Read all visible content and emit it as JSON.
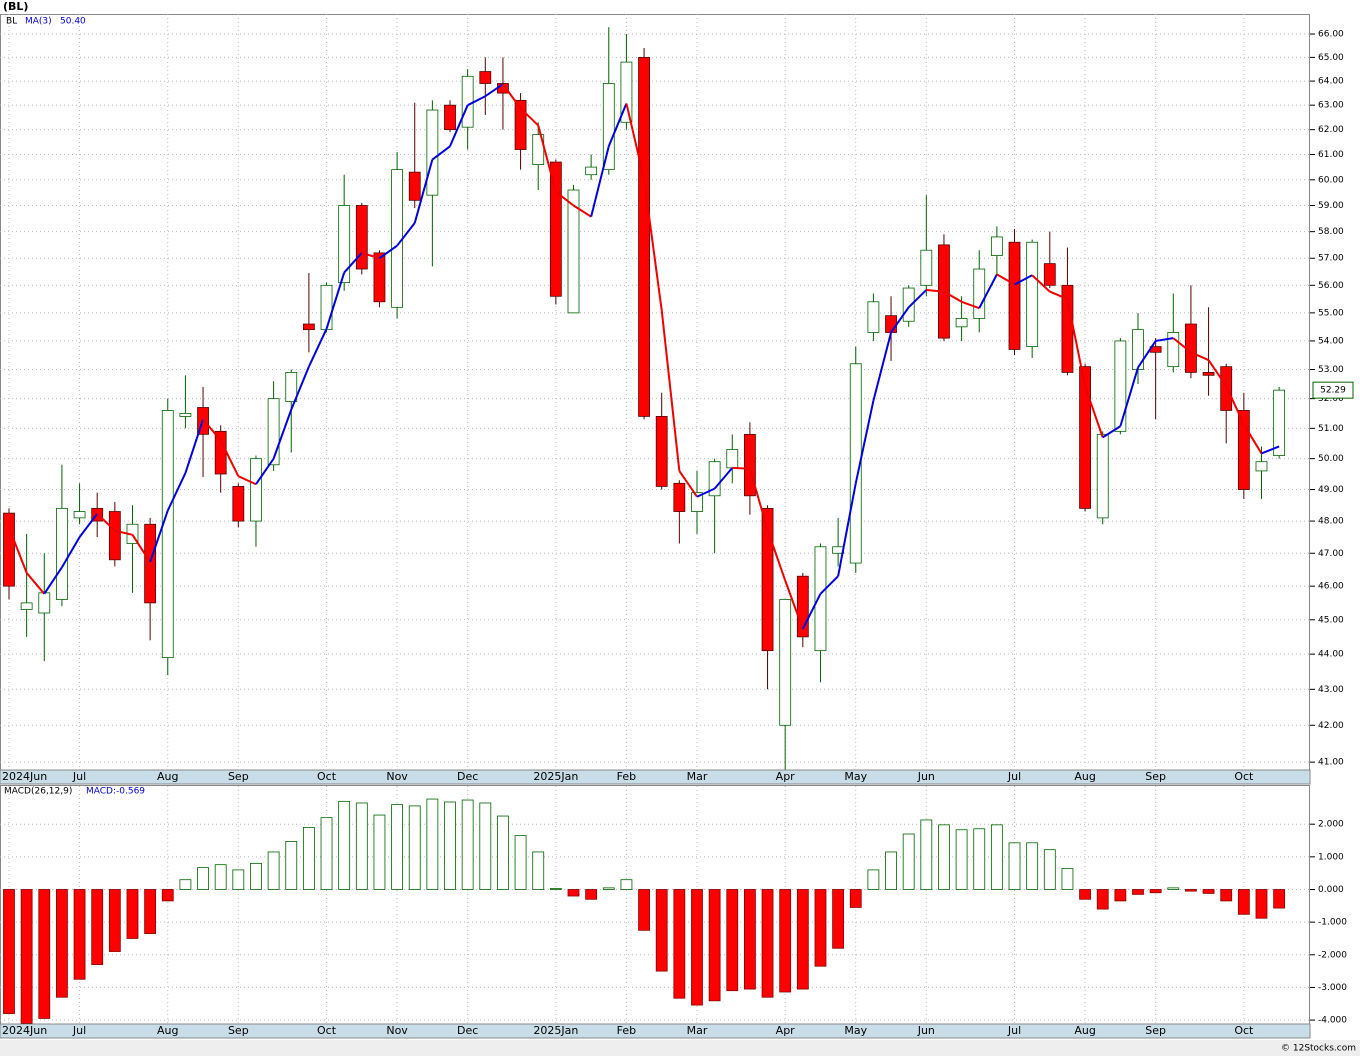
{
  "header": "(BL)",
  "footer": "© 12Stocks.com",
  "chart_data": [
    {
      "type": "candlestick",
      "symbol": "BL",
      "ma_name": "MA(3)",
      "ma_value_label": "50.40",
      "log_scale": true,
      "grid": true,
      "ylim": [
        40.79,
        66.87
      ],
      "yticks": [
        {
          "value": 41,
          "label": "41.00"
        },
        {
          "value": 42,
          "label": "42.00"
        },
        {
          "value": 43,
          "label": "43.00"
        },
        {
          "value": 44,
          "label": "44.00"
        },
        {
          "value": 45,
          "label": "45.00"
        },
        {
          "value": 46,
          "label": "46.00"
        },
        {
          "value": 47,
          "label": "47.00"
        },
        {
          "value": 48,
          "label": "48.00"
        },
        {
          "value": 49,
          "label": "49.00"
        },
        {
          "value": 50,
          "label": "50.00"
        },
        {
          "value": 51,
          "label": "51.00"
        },
        {
          "value": 52,
          "label": "52.00"
        },
        {
          "value": 53,
          "label": "53.00"
        },
        {
          "value": 54,
          "label": "54.00"
        },
        {
          "value": 55,
          "label": "55.00"
        },
        {
          "value": 56,
          "label": "56.00"
        },
        {
          "value": 57,
          "label": "57.00"
        },
        {
          "value": 58,
          "label": "58.00"
        },
        {
          "value": 59,
          "label": "59.00"
        },
        {
          "value": 60,
          "label": "60.00"
        },
        {
          "value": 61,
          "label": "61.00"
        },
        {
          "value": 62,
          "label": "62.00"
        },
        {
          "value": 63,
          "label": "63.00"
        },
        {
          "value": 64,
          "label": "64.00"
        },
        {
          "value": 65,
          "label": "65.00"
        },
        {
          "value": 66,
          "label": "66.00"
        }
      ],
      "xlim": [
        -0.51,
        73.75
      ],
      "xticks": [
        {
          "value": 0,
          "label": "2024Jun"
        },
        {
          "value": 4,
          "label": "Jul"
        },
        {
          "value": 9,
          "label": "Aug"
        },
        {
          "value": 13,
          "label": "Sep"
        },
        {
          "value": 18,
          "label": "Oct"
        },
        {
          "value": 22,
          "label": "Nov"
        },
        {
          "value": 26,
          "label": "Dec"
        },
        {
          "value": 31,
          "label": "2025Jan"
        },
        {
          "value": 35,
          "label": "Feb"
        },
        {
          "value": 39,
          "label": "Mar"
        },
        {
          "value": 44,
          "label": "Apr"
        },
        {
          "value": 48,
          "label": "May"
        },
        {
          "value": 52,
          "label": "Jun"
        },
        {
          "value": 57,
          "label": "Jul"
        },
        {
          "value": 61,
          "label": "Aug"
        },
        {
          "value": 65,
          "label": "Sep"
        },
        {
          "value": 70,
          "label": "Oct"
        }
      ],
      "up_color": "#006400",
      "down_color": "#ff0000",
      "ma_up_color": "#0000dd",
      "ma_down_color": "#ee0000",
      "open": [
        48.25,
        45.3,
        45.2,
        45.6,
        48.1,
        48.4,
        48.3,
        47.3,
        47.9,
        43.9,
        51.4,
        51.7,
        50.9,
        49.1,
        48.0,
        49.8,
        51.9,
        54.6,
        54.4,
        56.1,
        59.0,
        57.2,
        55.2,
        60.3,
        59.4,
        63.0,
        62.1,
        64.4,
        63.9,
        63.2,
        60.6,
        60.7,
        55.0,
        60.2,
        60.4,
        62.3,
        65.0,
        51.4,
        49.2,
        48.3,
        48.8,
        49.7,
        50.8,
        48.4,
        42.0,
        46.3,
        44.1,
        47.0,
        46.7,
        54.3,
        54.9,
        54.7,
        56.0,
        57.5,
        54.5,
        54.8,
        57.1,
        57.6,
        53.8,
        56.8,
        56.0,
        53.1,
        48.1,
        50.9,
        53.0,
        53.8,
        53.1,
        54.6,
        52.9,
        53.1,
        51.6,
        49.6,
        50.1
      ],
      "high": [
        48.4,
        47.6,
        47.0,
        49.8,
        49.2,
        48.9,
        48.6,
        48.5,
        48.1,
        52.0,
        52.8,
        52.4,
        51.1,
        49.2,
        50.1,
        52.6,
        53.0,
        56.45,
        56.1,
        60.2,
        59.1,
        57.3,
        61.1,
        63.1,
        63.2,
        63.2,
        64.5,
        65.0,
        65.0,
        63.5,
        62.3,
        60.8,
        59.8,
        61.0,
        66.3,
        66.0,
        65.4,
        52.2,
        49.3,
        49.6,
        50.0,
        50.8,
        51.2,
        48.5,
        45.6,
        46.4,
        47.3,
        48.1,
        53.8,
        55.7,
        55.6,
        56.0,
        59.4,
        57.9,
        55.6,
        57.3,
        58.2,
        58.1,
        57.7,
        58.0,
        57.4,
        53.2,
        50.9,
        54.1,
        55.0,
        54.1,
        55.7,
        56.0,
        55.2,
        53.2,
        52.2,
        50.4,
        52.4
      ],
      "low": [
        45.6,
        44.5,
        43.8,
        45.4,
        47.9,
        47.5,
        46.6,
        45.8,
        44.4,
        43.4,
        51.0,
        49.4,
        48.9,
        47.8,
        47.2,
        49.6,
        50.2,
        53.6,
        54.3,
        55.8,
        56.4,
        55.2,
        54.8,
        58.9,
        56.7,
        61.9,
        61.2,
        62.6,
        62.0,
        60.4,
        59.6,
        55.3,
        55.0,
        60.0,
        60.2,
        62.0,
        51.3,
        49.0,
        47.3,
        47.6,
        47.0,
        49.2,
        48.2,
        43.0,
        40.8,
        44.2,
        43.2,
        46.6,
        46.4,
        54.0,
        53.3,
        54.5,
        55.6,
        54.0,
        54.0,
        54.3,
        56.4,
        53.5,
        53.4,
        55.9,
        52.8,
        48.3,
        47.9,
        50.8,
        52.5,
        51.3,
        52.9,
        52.7,
        52.1,
        50.5,
        48.7,
        48.7,
        50.0
      ],
      "close": [
        46.0,
        45.5,
        45.8,
        48.4,
        48.3,
        48.0,
        46.8,
        47.9,
        45.5,
        51.6,
        51.5,
        50.8,
        49.5,
        48.0,
        50.0,
        52.0,
        52.9,
        54.4,
        56.0,
        59.0,
        56.6,
        55.4,
        60.4,
        59.2,
        62.8,
        62.0,
        64.2,
        63.9,
        63.5,
        61.2,
        61.8,
        55.6,
        59.6,
        60.5,
        63.9,
        64.8,
        51.4,
        49.1,
        48.3,
        48.9,
        49.9,
        50.3,
        48.8,
        44.1,
        45.6,
        44.5,
        47.2,
        47.2,
        53.2,
        55.4,
        54.3,
        55.9,
        57.3,
        54.1,
        54.8,
        56.6,
        57.8,
        53.7,
        57.6,
        56.0,
        52.9,
        48.4,
        50.8,
        54.0,
        54.4,
        53.6,
        54.3,
        52.9,
        52.8,
        51.6,
        49.0,
        49.9,
        52.29
      ],
      "ma": [
        47.8,
        46.4,
        45.77,
        46.57,
        47.5,
        48.23,
        47.7,
        47.57,
        46.73,
        48.33,
        49.53,
        51.3,
        50.6,
        49.43,
        49.17,
        50.0,
        51.63,
        53.1,
        54.43,
        56.47,
        57.2,
        57.0,
        57.47,
        58.33,
        60.8,
        61.33,
        63.0,
        63.37,
        63.87,
        62.87,
        62.17,
        59.53,
        59.0,
        58.57,
        61.33,
        63.07,
        60.03,
        55.1,
        49.6,
        48.77,
        49.03,
        49.7,
        49.67,
        47.73,
        46.17,
        44.73,
        45.77,
        46.3,
        49.2,
        51.93,
        54.3,
        55.2,
        55.83,
        55.77,
        55.4,
        55.17,
        56.4,
        56.03,
        56.37,
        55.77,
        55.5,
        52.43,
        50.7,
        51.07,
        53.07,
        54.0,
        54.1,
        53.6,
        53.33,
        52.43,
        51.13,
        50.17,
        50.4
      ]
    },
    {
      "type": "bar",
      "title": "MACD(26,12,9)",
      "legend": "MACD:-0.569",
      "grid": true,
      "ylim": [
        -4.12,
        3.17
      ],
      "yticks": [
        {
          "value": 2,
          "label": "2.000"
        },
        {
          "value": 1,
          "label": "1.000"
        },
        {
          "value": 0,
          "label": "0.000"
        },
        {
          "value": -1,
          "label": "-1.000"
        },
        {
          "value": -2,
          "label": "-2.000"
        },
        {
          "value": -3,
          "label": "-3.000"
        },
        {
          "value": -4,
          "label": "-4.000"
        }
      ],
      "xlim": [
        -0.51,
        73.75
      ],
      "xticks": [
        {
          "value": 0,
          "label": "2024Jun"
        },
        {
          "value": 4,
          "label": "Jul"
        },
        {
          "value": 9,
          "label": "Aug"
        },
        {
          "value": 13,
          "label": "Sep"
        },
        {
          "value": 18,
          "label": "Oct"
        },
        {
          "value": 22,
          "label": "Nov"
        },
        {
          "value": 26,
          "label": "Dec"
        },
        {
          "value": 31,
          "label": "2025Jan"
        },
        {
          "value": 35,
          "label": "Feb"
        },
        {
          "value": 39,
          "label": "Mar"
        },
        {
          "value": 44,
          "label": "Apr"
        },
        {
          "value": 48,
          "label": "May"
        },
        {
          "value": 52,
          "label": "Jun"
        },
        {
          "value": 57,
          "label": "Jul"
        },
        {
          "value": 61,
          "label": "Aug"
        },
        {
          "value": 65,
          "label": "Sep"
        },
        {
          "value": 70,
          "label": "Oct"
        }
      ],
      "pos_color": "#006400",
      "neg_color": "#ff0000",
      "values": [
        -3.8,
        -4.1,
        -3.95,
        -3.3,
        -2.75,
        -2.3,
        -1.9,
        -1.5,
        -1.35,
        -0.35,
        0.3,
        0.67,
        0.76,
        0.6,
        0.8,
        1.15,
        1.47,
        1.9,
        2.2,
        2.7,
        2.65,
        2.28,
        2.6,
        2.56,
        2.77,
        2.68,
        2.74,
        2.65,
        2.25,
        1.65,
        1.15,
        0.03,
        -0.2,
        -0.3,
        0.05,
        0.3,
        -1.25,
        -2.5,
        -3.33,
        -3.54,
        -3.41,
        -3.1,
        -3.05,
        -3.3,
        -3.14,
        -3.05,
        -2.35,
        -1.8,
        -0.55,
        0.6,
        1.15,
        1.7,
        2.13,
        1.98,
        1.83,
        1.86,
        1.98,
        1.43,
        1.43,
        1.22,
        0.64,
        -0.3,
        -0.6,
        -0.35,
        -0.15,
        -0.1,
        0.05,
        -0.05,
        -0.12,
        -0.35,
        -0.76,
        -0.88,
        -0.569
      ]
    }
  ]
}
